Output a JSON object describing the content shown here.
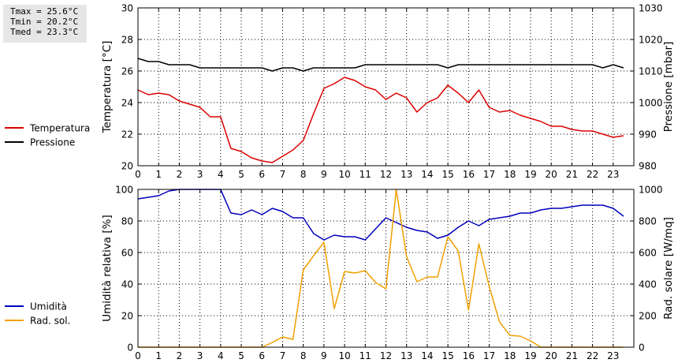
{
  "stats": {
    "tmax": "Tmax = 25.6°C",
    "tmin": "Tmin = 20.2°C",
    "tmed": "Tmed = 23.3°C"
  },
  "colors": {
    "temperature": "#dd0000",
    "pressure": "#000000",
    "humidity": "#0000bb",
    "radiation": "#f0a000",
    "grid": "#000000"
  },
  "chart_data": [
    {
      "type": "line",
      "ylabel": "Temperatura [°C]",
      "y2label": "Pressione [mbar]",
      "xlim": [
        0,
        24
      ],
      "ylim": [
        20,
        30
      ],
      "y2lim": [
        980,
        1030
      ],
      "x_ticks": [
        "0",
        "1",
        "2",
        "3",
        "4",
        "5",
        "6",
        "7",
        "8",
        "9",
        "10",
        "11",
        "12",
        "13",
        "14",
        "15",
        "16",
        "17",
        "18",
        "19",
        "20",
        "21",
        "22",
        "23"
      ],
      "y_ticks": [
        "20",
        "22",
        "24",
        "26",
        "28",
        "30"
      ],
      "y2_ticks": [
        "980",
        "990",
        "1000",
        "1010",
        "1020",
        "1030"
      ],
      "grid": true,
      "legend_position": "left",
      "series": [
        {
          "name": "Temperatura",
          "axis": "left",
          "color": "#dd0000",
          "x": [
            0,
            0.5,
            1,
            1.5,
            2,
            2.5,
            3,
            3.5,
            4,
            4.5,
            5,
            5.5,
            6,
            6.5,
            7,
            7.5,
            8,
            8.5,
            9,
            9.5,
            10,
            10.5,
            11,
            11.5,
            12,
            12.5,
            13,
            13.5,
            14,
            14.5,
            15,
            15.5,
            16,
            16.5,
            17,
            17.5,
            18,
            18.5,
            19,
            19.5,
            20,
            20.5,
            21,
            21.5,
            22,
            22.5,
            23,
            23.5
          ],
          "values": [
            24.8,
            24.5,
            24.6,
            24.5,
            24.1,
            23.9,
            23.7,
            23.1,
            23.1,
            21.1,
            20.9,
            20.5,
            20.3,
            20.2,
            20.6,
            21.0,
            21.6,
            23.3,
            24.9,
            25.2,
            25.6,
            25.4,
            25.0,
            24.8,
            24.2,
            24.6,
            24.3,
            23.4,
            24.0,
            24.3,
            25.1,
            24.6,
            24.0,
            24.8,
            23.7,
            23.4,
            23.5,
            23.2,
            23.0,
            22.8,
            22.5,
            22.5,
            22.3,
            22.2,
            22.2,
            22.0,
            21.8,
            21.9
          ]
        },
        {
          "name": "Pressione",
          "axis": "right",
          "color": "#000000",
          "x": [
            0,
            0.5,
            1,
            1.5,
            2,
            2.5,
            3,
            3.5,
            4,
            4.5,
            5,
            5.5,
            6,
            6.5,
            7,
            7.5,
            8,
            8.5,
            9,
            9.5,
            10,
            10.5,
            11,
            11.5,
            12,
            12.5,
            13,
            13.5,
            14,
            14.5,
            15,
            15.5,
            16,
            16.5,
            17,
            17.5,
            18,
            18.5,
            19,
            19.5,
            20,
            20.5,
            21,
            21.5,
            22,
            22.5,
            23,
            23.5
          ],
          "values": [
            1014,
            1013,
            1013,
            1012,
            1012,
            1012,
            1011,
            1011,
            1011,
            1011,
            1011,
            1011,
            1011,
            1010,
            1011,
            1011,
            1010,
            1011,
            1011,
            1011,
            1011,
            1011,
            1012,
            1012,
            1012,
            1012,
            1012,
            1012,
            1012,
            1012,
            1011,
            1012,
            1012,
            1012,
            1012,
            1012,
            1012,
            1012,
            1012,
            1012,
            1012,
            1012,
            1012,
            1012,
            1012,
            1011,
            1012,
            1011
          ]
        }
      ]
    },
    {
      "type": "line",
      "ylabel": "Umidità relativa [%]",
      "y2label": "Rad. solare [W/mq]",
      "xlim": [
        0,
        24
      ],
      "ylim": [
        0,
        100
      ],
      "y2lim": [
        0,
        1000
      ],
      "x_ticks": [
        "0",
        "1",
        "2",
        "3",
        "4",
        "5",
        "6",
        "7",
        "8",
        "9",
        "10",
        "11",
        "12",
        "13",
        "14",
        "15",
        "16",
        "17",
        "18",
        "19",
        "20",
        "21",
        "22",
        "23"
      ],
      "y_ticks": [
        "0",
        "20",
        "40",
        "60",
        "80",
        "100"
      ],
      "y2_ticks": [
        "0",
        "200",
        "400",
        "600",
        "800",
        "1000"
      ],
      "grid": true,
      "legend_position": "left",
      "series": [
        {
          "name": "Umidità",
          "axis": "left",
          "color": "#0000bb",
          "x": [
            0,
            0.5,
            1,
            1.5,
            2,
            2.5,
            3,
            3.5,
            4,
            4.5,
            5,
            5.5,
            6,
            6.5,
            7,
            7.5,
            8,
            8.5,
            9,
            9.5,
            10,
            10.5,
            11,
            11.5,
            12,
            12.5,
            13,
            13.5,
            14,
            14.5,
            15,
            15.5,
            16,
            16.5,
            17,
            17.5,
            18,
            18.5,
            19,
            19.5,
            20,
            20.5,
            21,
            21.5,
            22,
            22.5,
            23,
            23.5
          ],
          "values": [
            94,
            95,
            96,
            99,
            100,
            100,
            100,
            100,
            100,
            85,
            84,
            87,
            84,
            88,
            86,
            82,
            82,
            72,
            68,
            71,
            70,
            70,
            68,
            75,
            82,
            79,
            76,
            74,
            73,
            69,
            71,
            76,
            80,
            77,
            81,
            82,
            83,
            85,
            85,
            87,
            88,
            88,
            89,
            90,
            90,
            90,
            88,
            83
          ]
        },
        {
          "name": "Rad. sol.",
          "axis": "right",
          "color": "#f0a000",
          "x": [
            0,
            0.5,
            1,
            1.5,
            2,
            2.5,
            3,
            3.5,
            4,
            4.5,
            5,
            5.5,
            6,
            6.5,
            7,
            7.5,
            8,
            8.5,
            9,
            9.5,
            10,
            10.5,
            11,
            11.5,
            12,
            12.5,
            13,
            13.5,
            14,
            14.5,
            15,
            15.5,
            16,
            16.5,
            17,
            17.5,
            18,
            18.5,
            19,
            19.5,
            20,
            20.5,
            21,
            21.5,
            22,
            22.5,
            23,
            23.5
          ],
          "values": [
            0,
            0,
            0,
            0,
            0,
            0,
            0,
            0,
            0,
            0,
            0,
            0,
            0,
            30,
            65,
            50,
            490,
            580,
            665,
            245,
            480,
            470,
            485,
            410,
            370,
            1000,
            575,
            415,
            445,
            445,
            700,
            610,
            235,
            655,
            385,
            160,
            75,
            70,
            40,
            0,
            0,
            0,
            0,
            0,
            0,
            0,
            0,
            0
          ]
        }
      ]
    }
  ]
}
